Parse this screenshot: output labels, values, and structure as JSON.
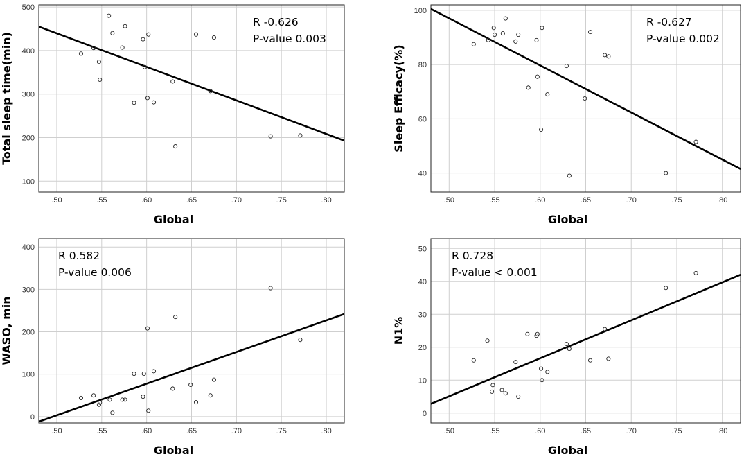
{
  "chart_data": [
    {
      "type": "scatter",
      "xlabel": "Global",
      "ylabel": "Total sleep time(min)",
      "xlim": [
        0.48,
        0.82
      ],
      "ylim": [
        75,
        505
      ],
      "xticks": [
        ".50",
        ".55",
        ".60",
        ".65",
        ".70",
        ".75",
        ".80"
      ],
      "yticks": [
        "100",
        "200",
        "300",
        "400",
        "500"
      ],
      "grid": true,
      "annotations": [
        "R -0.626",
        "P-value 0.003"
      ],
      "annotation_position": "top-right",
      "points": [
        {
          "x": 0.527,
          "y": 393
        },
        {
          "x": 0.541,
          "y": 406
        },
        {
          "x": 0.547,
          "y": 374
        },
        {
          "x": 0.548,
          "y": 333
        },
        {
          "x": 0.558,
          "y": 480
        },
        {
          "x": 0.562,
          "y": 440
        },
        {
          "x": 0.573,
          "y": 407
        },
        {
          "x": 0.576,
          "y": 456
        },
        {
          "x": 0.586,
          "y": 280
        },
        {
          "x": 0.596,
          "y": 426
        },
        {
          "x": 0.598,
          "y": 362
        },
        {
          "x": 0.601,
          "y": 291
        },
        {
          "x": 0.602,
          "y": 437
        },
        {
          "x": 0.608,
          "y": 281
        },
        {
          "x": 0.629,
          "y": 329
        },
        {
          "x": 0.632,
          "y": 180
        },
        {
          "x": 0.655,
          "y": 437
        },
        {
          "x": 0.671,
          "y": 307
        },
        {
          "x": 0.675,
          "y": 430
        },
        {
          "x": 0.738,
          "y": 203
        },
        {
          "x": 0.771,
          "y": 205
        }
      ],
      "fit_line": [
        {
          "x": 0.48,
          "y": 455
        },
        {
          "x": 0.82,
          "y": 193
        }
      ]
    },
    {
      "type": "scatter",
      "xlabel": "Global",
      "ylabel": "Sleep Efficacy(%)",
      "xlim": [
        0.48,
        0.82
      ],
      "ylim": [
        33,
        102
      ],
      "xticks": [
        ".50",
        ".55",
        ".60",
        ".65",
        ".70",
        ".75",
        ".80"
      ],
      "yticks": [
        "40",
        "60",
        "80",
        "100"
      ],
      "grid": true,
      "annotations": [
        "R -0.627",
        "P-value 0.002"
      ],
      "annotation_position": "top-right",
      "points": [
        {
          "x": 0.527,
          "y": 87.5
        },
        {
          "x": 0.543,
          "y": 89
        },
        {
          "x": 0.549,
          "y": 93.5
        },
        {
          "x": 0.55,
          "y": 91
        },
        {
          "x": 0.559,
          "y": 91.5
        },
        {
          "x": 0.562,
          "y": 97
        },
        {
          "x": 0.573,
          "y": 88.5
        },
        {
          "x": 0.576,
          "y": 91
        },
        {
          "x": 0.587,
          "y": 71.5
        },
        {
          "x": 0.596,
          "y": 89
        },
        {
          "x": 0.597,
          "y": 75.5
        },
        {
          "x": 0.601,
          "y": 56
        },
        {
          "x": 0.602,
          "y": 93.5
        },
        {
          "x": 0.608,
          "y": 69
        },
        {
          "x": 0.629,
          "y": 79.5
        },
        {
          "x": 0.632,
          "y": 39
        },
        {
          "x": 0.649,
          "y": 67.5
        },
        {
          "x": 0.655,
          "y": 92
        },
        {
          "x": 0.671,
          "y": 83.5
        },
        {
          "x": 0.675,
          "y": 83
        },
        {
          "x": 0.738,
          "y": 40
        },
        {
          "x": 0.771,
          "y": 51.5
        }
      ],
      "fit_line": [
        {
          "x": 0.48,
          "y": 100.5
        },
        {
          "x": 0.82,
          "y": 41.5
        }
      ]
    },
    {
      "type": "scatter",
      "xlabel": "Global",
      "ylabel": "WASO, min",
      "xlim": [
        0.48,
        0.82
      ],
      "ylim": [
        -15,
        420
      ],
      "xticks": [
        ".50",
        ".55",
        ".60",
        ".65",
        ".70",
        ".75",
        ".80"
      ],
      "yticks": [
        "0",
        "100",
        "200",
        "300",
        "400"
      ],
      "grid": true,
      "annotations": [
        "R 0.582",
        "P-value 0.006"
      ],
      "annotation_position": "top-left",
      "points": [
        {
          "x": 0.527,
          "y": 44
        },
        {
          "x": 0.541,
          "y": 50
        },
        {
          "x": 0.547,
          "y": 28
        },
        {
          "x": 0.548,
          "y": 33
        },
        {
          "x": 0.559,
          "y": 40
        },
        {
          "x": 0.562,
          "y": 9
        },
        {
          "x": 0.573,
          "y": 40
        },
        {
          "x": 0.576,
          "y": 40
        },
        {
          "x": 0.586,
          "y": 101
        },
        {
          "x": 0.596,
          "y": 47
        },
        {
          "x": 0.597,
          "y": 101
        },
        {
          "x": 0.601,
          "y": 208
        },
        {
          "x": 0.602,
          "y": 14
        },
        {
          "x": 0.608,
          "y": 107
        },
        {
          "x": 0.629,
          "y": 66
        },
        {
          "x": 0.632,
          "y": 235
        },
        {
          "x": 0.649,
          "y": 75
        },
        {
          "x": 0.655,
          "y": 34
        },
        {
          "x": 0.671,
          "y": 50
        },
        {
          "x": 0.675,
          "y": 87
        },
        {
          "x": 0.738,
          "y": 303
        },
        {
          "x": 0.771,
          "y": 181
        }
      ],
      "fit_line": [
        {
          "x": 0.48,
          "y": -12
        },
        {
          "x": 0.82,
          "y": 242
        }
      ]
    },
    {
      "type": "scatter",
      "xlabel": "Global",
      "ylabel": "N1%",
      "xlim": [
        0.48,
        0.82
      ],
      "ylim": [
        -3,
        53
      ],
      "xticks": [
        ".50",
        ".55",
        ".60",
        ".65",
        ".70",
        ".75",
        ".80"
      ],
      "yticks": [
        "0",
        "10",
        "20",
        "30",
        "40",
        "50"
      ],
      "grid": true,
      "annotations": [
        "R 0.728",
        "P-value < 0.001"
      ],
      "annotation_position": "top-left",
      "points": [
        {
          "x": 0.527,
          "y": 16
        },
        {
          "x": 0.542,
          "y": 22
        },
        {
          "x": 0.547,
          "y": 6.5
        },
        {
          "x": 0.548,
          "y": 8.5
        },
        {
          "x": 0.558,
          "y": 7
        },
        {
          "x": 0.562,
          "y": 6
        },
        {
          "x": 0.573,
          "y": 15.5
        },
        {
          "x": 0.576,
          "y": 5
        },
        {
          "x": 0.586,
          "y": 24
        },
        {
          "x": 0.596,
          "y": 23.5
        },
        {
          "x": 0.597,
          "y": 24
        },
        {
          "x": 0.601,
          "y": 13.5
        },
        {
          "x": 0.602,
          "y": 10
        },
        {
          "x": 0.608,
          "y": 12.5
        },
        {
          "x": 0.629,
          "y": 21
        },
        {
          "x": 0.632,
          "y": 19.5
        },
        {
          "x": 0.655,
          "y": 16
        },
        {
          "x": 0.671,
          "y": 25.5
        },
        {
          "x": 0.675,
          "y": 16.5
        },
        {
          "x": 0.738,
          "y": 38
        },
        {
          "x": 0.771,
          "y": 42.5
        }
      ],
      "fit_line": [
        {
          "x": 0.48,
          "y": 2.8
        },
        {
          "x": 0.82,
          "y": 42
        }
      ]
    }
  ]
}
